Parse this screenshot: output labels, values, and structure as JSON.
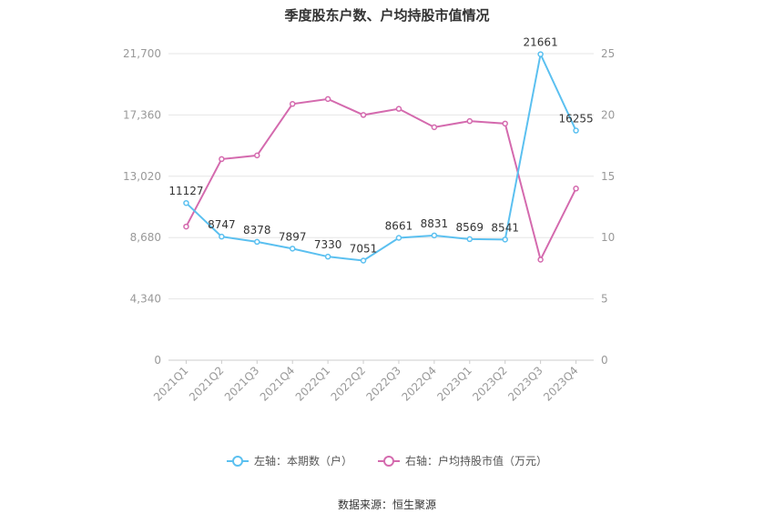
{
  "title": "季度股东户数、户均持股市值情况",
  "source": "数据来源：恒生聚源",
  "colors": {
    "left_series": "#5bc0f0",
    "right_series": "#d46aae",
    "grid": "#e6e6e6",
    "axis_text": "#999999",
    "label_text": "#333333"
  },
  "chart_data": {
    "type": "line",
    "categories": [
      "2021Q1",
      "2021Q2",
      "2021Q3",
      "2021Q4",
      "2022Q1",
      "2022Q2",
      "2022Q3",
      "2022Q4",
      "2023Q1",
      "2023Q2",
      "2023Q3",
      "2023Q4"
    ],
    "left_axis": {
      "ticks": [
        "0",
        "4,340",
        "8,680",
        "13,020",
        "17,360",
        "21,700"
      ],
      "min": 0,
      "max": 21700
    },
    "right_axis": {
      "ticks": [
        "0",
        "5",
        "10",
        "15",
        "20",
        "25"
      ],
      "min": 0,
      "max": 25
    },
    "series": [
      {
        "name": "左轴：本期数（户）",
        "axis": "left",
        "values": [
          11127,
          8747,
          8378,
          7897,
          7330,
          7051,
          8661,
          8831,
          8569,
          8541,
          21661,
          16255
        ],
        "labels": [
          "11127",
          "8747",
          "8378",
          "7897",
          "7330",
          "7051",
          "8661",
          "8831",
          "8569",
          "8541",
          "21661",
          "16255"
        ]
      },
      {
        "name": "右轴：户均持股市值（万元）",
        "axis": "right",
        "values": [
          10.9,
          16.4,
          16.7,
          20.9,
          21.3,
          20.0,
          20.5,
          19.0,
          19.5,
          19.3,
          8.2,
          14.0
        ]
      }
    ],
    "grid": true,
    "legend_position": "bottom"
  }
}
